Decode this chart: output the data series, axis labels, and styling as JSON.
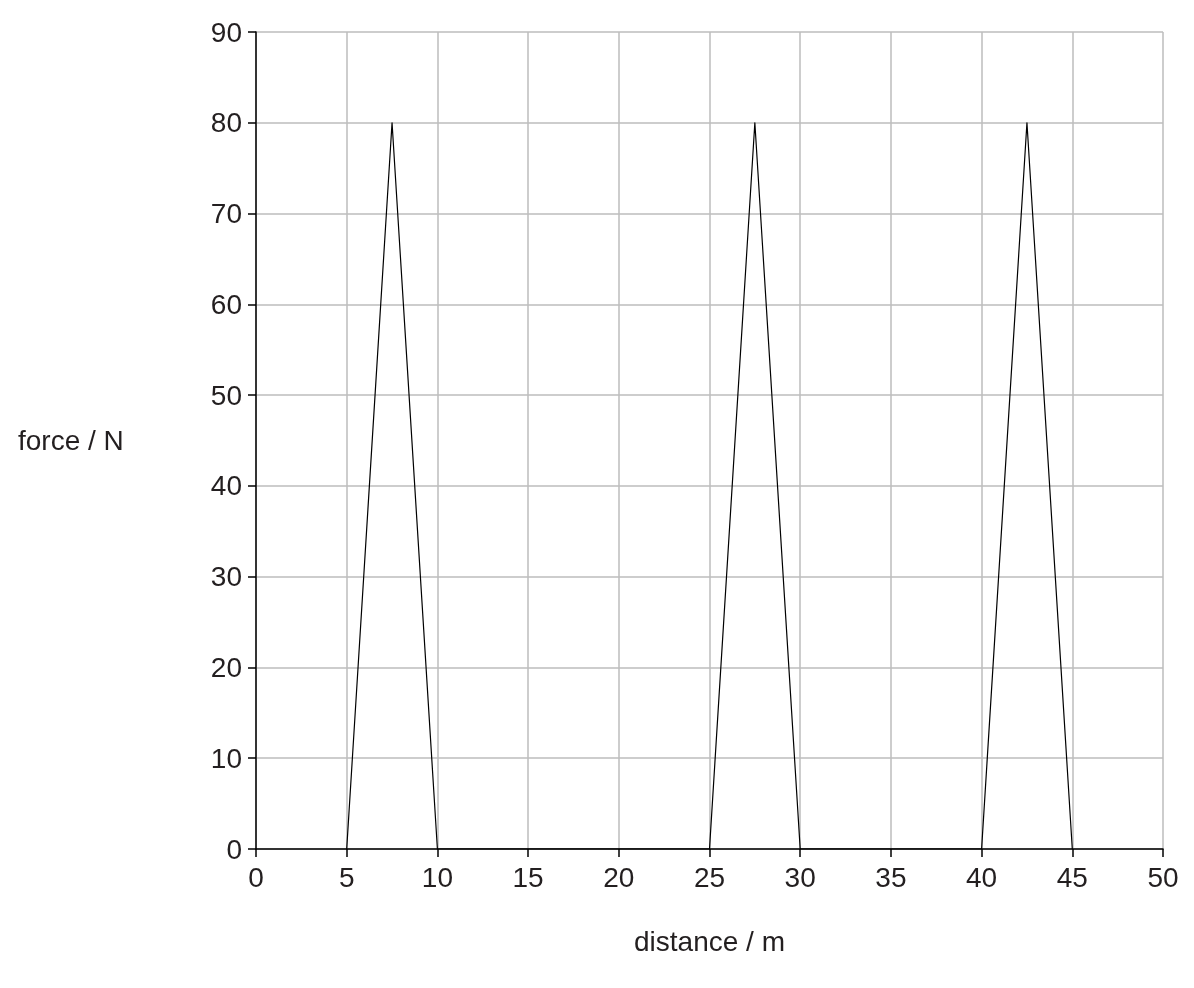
{
  "chart_data": {
    "type": "line",
    "xlabel": "distance / m",
    "ylabel": "force / N",
    "x": [
      5,
      7.5,
      10,
      25,
      27.5,
      30,
      40,
      42.5,
      45
    ],
    "series": [
      {
        "color": "#000000",
        "values": [
          0,
          80,
          0,
          0,
          80,
          0,
          0,
          80,
          0
        ]
      }
    ],
    "xlim": [
      0,
      50
    ],
    "xticks": [
      0,
      5,
      10,
      15,
      20,
      25,
      30,
      35,
      40,
      45,
      50
    ],
    "ylim": [
      0,
      90
    ],
    "yticks": [
      0,
      10,
      20,
      30,
      40,
      50,
      60,
      70,
      80,
      90
    ],
    "grid": true,
    "marker": "none",
    "line_style": "solid"
  }
}
